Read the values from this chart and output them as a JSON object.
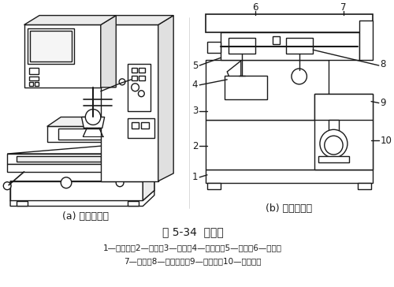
{
  "title": "图 5-34  移印机",
  "caption_a": "(a) 移印机外观",
  "caption_b": "(b) 移印机结构",
  "legend_line1": "1—角铁架；2—底座；3—立柱；4—印版台；5—刮刀；6—横梁；",
  "legend_line2": "7—导轨；8—硅胶印头；9—承印物；10—升降机构",
  "bg_color": "#ffffff",
  "line_color": "#1a1a1a",
  "text_color": "#1a1a1a"
}
